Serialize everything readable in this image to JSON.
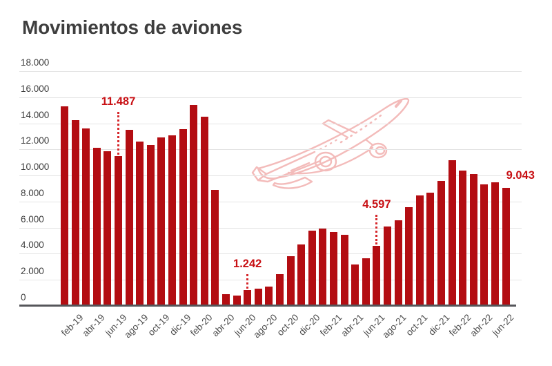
{
  "title": "Movimientos de aviones",
  "chart_data": {
    "type": "bar",
    "title": "Movimientos de aviones",
    "legend": "none",
    "grid": true,
    "bar_color": "#b30d12",
    "annotation_color": "#c81014",
    "ylim": [
      0,
      18000
    ],
    "y_tick_step": 2000,
    "y_tick_labels": [
      "0",
      "2.000",
      "4.000",
      "6.000",
      "8.000",
      "10.000",
      "12.000",
      "14.000",
      "16.000",
      "18.000"
    ],
    "x_tick_labels_shown": [
      "feb-19",
      "abr-19",
      "jun-19",
      "ago-19",
      "oct-19",
      "dic-19",
      "feb-20",
      "abr-20",
      "jun-20",
      "ago-20",
      "oct-20",
      "dic-20",
      "feb-21",
      "abr-21",
      "jun-21",
      "ago-21",
      "oct-21",
      "dic-21",
      "feb-22",
      "abr-22",
      "jun-22"
    ],
    "categories": [
      "ene-19",
      "feb-19",
      "mar-19",
      "abr-19",
      "may-19",
      "jun-19",
      "jul-19",
      "ago-19",
      "sep-19",
      "oct-19",
      "nov-19",
      "dic-19",
      "ene-20",
      "feb-20",
      "mar-20",
      "abr-20",
      "may-20",
      "jun-20",
      "jul-20",
      "ago-20",
      "sep-20",
      "oct-20",
      "nov-20",
      "dic-20",
      "ene-21",
      "feb-21",
      "mar-21",
      "abr-21",
      "may-21",
      "jun-21",
      "jul-21",
      "ago-21",
      "sep-21",
      "oct-21",
      "nov-21",
      "dic-21",
      "ene-22",
      "feb-22",
      "mar-22",
      "abr-22",
      "may-22",
      "jun-22"
    ],
    "values": [
      15300,
      14250,
      13600,
      12100,
      11850,
      11487,
      13500,
      12600,
      12350,
      12900,
      13100,
      13550,
      15400,
      14500,
      8900,
      900,
      800,
      1242,
      1300,
      1500,
      2450,
      3800,
      4700,
      5750,
      5950,
      5650,
      5450,
      3200,
      3650,
      4597,
      6100,
      6550,
      7550,
      8450,
      8700,
      9600,
      11150,
      10400,
      10100,
      9300,
      9500,
      9043
    ],
    "annotations": [
      {
        "text": "11.487",
        "category": "jun-19",
        "value": 11487,
        "placement": "above"
      },
      {
        "text": "1.242",
        "category": "jun-20",
        "value": 1242,
        "placement": "above"
      },
      {
        "text": "4.597",
        "category": "jun-21",
        "value": 4597,
        "placement": "above"
      },
      {
        "text": "9.043",
        "category": "jun-22",
        "value": 9043,
        "placement": "right"
      }
    ],
    "watermark": "plane-sketch"
  }
}
